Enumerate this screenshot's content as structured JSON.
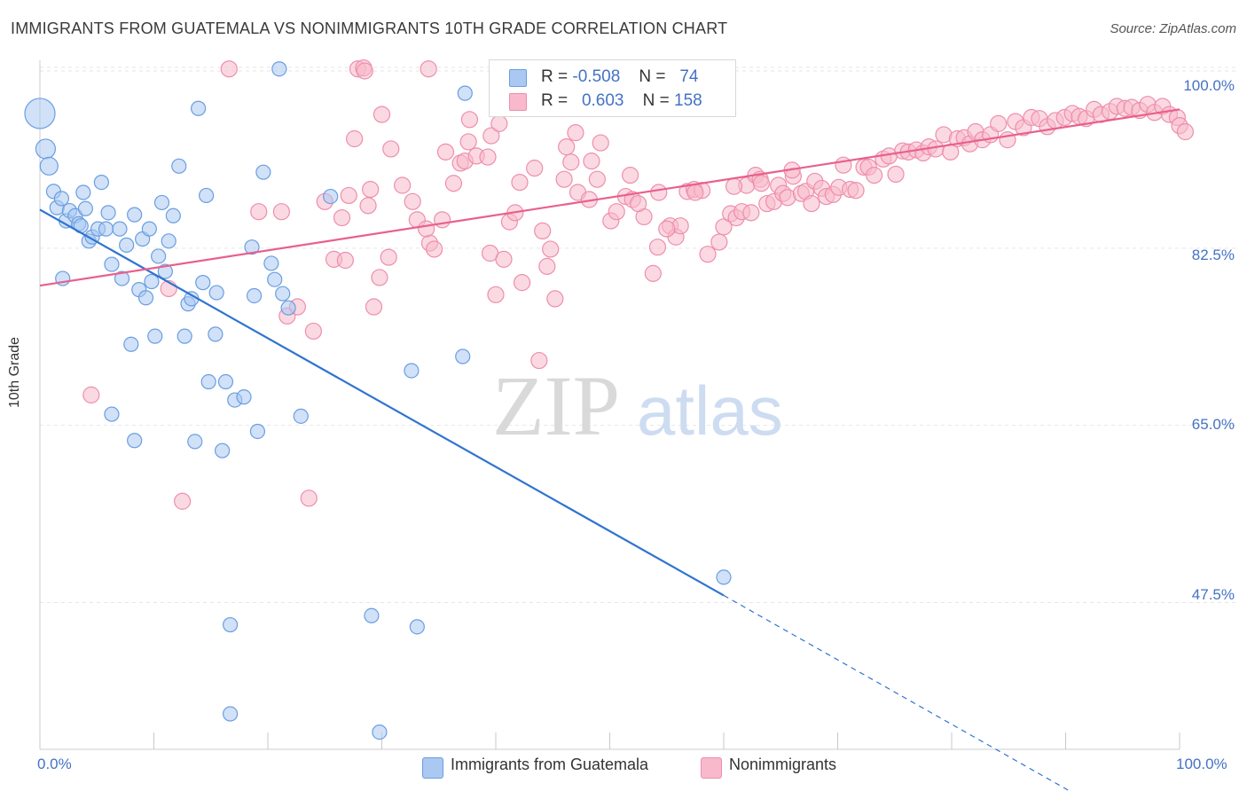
{
  "title": "IMMIGRANTS FROM GUATEMALA VS NONIMMIGRANTS 10TH GRADE CORRELATION CHART",
  "source": "Source: ZipAtlas.com",
  "watermark": {
    "zip": "ZIP",
    "atlas": "atlas"
  },
  "legend": {
    "rows": [
      {
        "r_label": "R =",
        "r_value": "-0.508",
        "n_label": "N =",
        "n_value": "74"
      },
      {
        "r_label": "R =",
        "r_value": "0.603",
        "n_label": "N =",
        "n_value": "158"
      }
    ]
  },
  "colors": {
    "blue_fill": "#aac8f2",
    "blue_stroke": "#6a9ee0",
    "blue_line": "#2f74d0",
    "pink_fill": "#f7b9cb",
    "pink_stroke": "#ee8eac",
    "pink_line": "#e8608c",
    "tick_label": "#4472c4",
    "grid": "#e6e6e6"
  },
  "chart_data": {
    "type": "scatter",
    "title": "IMMIGRANTS FROM GUATEMALA VS NONIMMIGRANTS 10TH GRADE CORRELATION CHART",
    "xlabel": "",
    "ylabel": "10th Grade",
    "xlim": [
      0,
      100
    ],
    "ylim": [
      33,
      100
    ],
    "x_tick_labels": [
      "0.0%",
      "100.0%"
    ],
    "y_ticks": [
      47.5,
      65.0,
      82.5,
      100.0
    ],
    "y_tick_labels": [
      "47.5%",
      "65.0%",
      "82.5%",
      "100.0%"
    ],
    "grid": true,
    "legend_position": "top-center",
    "series": [
      {
        "name": "Immigrants from Guatemala",
        "color": "#aac8f2",
        "trend": {
          "x": [
            0,
            60,
            93
          ],
          "y": [
            86.3,
            48.2,
            27.2
          ],
          "solid_until": 60
        },
        "points": [
          [
            0,
            95.8,
            17
          ],
          [
            0.5,
            92.3,
            11
          ],
          [
            0.8,
            90.6,
            10
          ],
          [
            1.2,
            88.1,
            8
          ],
          [
            1.5,
            86.5,
            8
          ],
          [
            1.9,
            87.4,
            8
          ],
          [
            2.3,
            85.2,
            8
          ],
          [
            2.6,
            86.2,
            8
          ],
          [
            3.1,
            85.7,
            8
          ],
          [
            3.4,
            84.9,
            8
          ],
          [
            3.8,
            88.0,
            8
          ],
          [
            4.0,
            86.4,
            8
          ],
          [
            4.3,
            83.2,
            8
          ],
          [
            4.6,
            83.6,
            8
          ],
          [
            5.1,
            84.4,
            8
          ],
          [
            5.4,
            89.0,
            8
          ],
          [
            5.8,
            84.4,
            8
          ],
          [
            6.0,
            86.0,
            8
          ],
          [
            6.3,
            80.9,
            8
          ],
          [
            7.0,
            84.4,
            8
          ],
          [
            7.2,
            79.5,
            8
          ],
          [
            7.6,
            82.8,
            8
          ],
          [
            8.0,
            73.0,
            8
          ],
          [
            8.3,
            85.8,
            8
          ],
          [
            8.7,
            78.4,
            8
          ],
          [
            9.0,
            83.4,
            8
          ],
          [
            9.3,
            77.6,
            8
          ],
          [
            9.6,
            84.4,
            8
          ],
          [
            9.8,
            79.2,
            8
          ],
          [
            10.1,
            73.8,
            8
          ],
          [
            10.4,
            81.7,
            8
          ],
          [
            10.7,
            87.0,
            8
          ],
          [
            11.0,
            80.2,
            8
          ],
          [
            11.3,
            83.2,
            8
          ],
          [
            11.7,
            85.7,
            8
          ],
          [
            12.2,
            90.6,
            8
          ],
          [
            12.7,
            73.8,
            8
          ],
          [
            13.0,
            77.0,
            8
          ],
          [
            13.3,
            77.5,
            8
          ],
          [
            13.6,
            63.4,
            8
          ],
          [
            13.9,
            96.3,
            8
          ],
          [
            14.3,
            79.1,
            8
          ],
          [
            14.6,
            87.7,
            8
          ],
          [
            14.8,
            69.3,
            8
          ],
          [
            15.4,
            74.0,
            8
          ],
          [
            15.5,
            78.1,
            8
          ],
          [
            16.0,
            62.5,
            8
          ],
          [
            16.3,
            69.3,
            8
          ],
          [
            16.7,
            45.3,
            8
          ],
          [
            17.1,
            67.5,
            8
          ],
          [
            17.9,
            67.8,
            8
          ],
          [
            18.6,
            82.6,
            8
          ],
          [
            18.8,
            77.8,
            8
          ],
          [
            19.1,
            64.4,
            8
          ],
          [
            19.6,
            90.0,
            8
          ],
          [
            20.3,
            81.0,
            8
          ],
          [
            20.6,
            79.4,
            8
          ],
          [
            21.3,
            78.0,
            8
          ],
          [
            21.8,
            76.6,
            8
          ],
          [
            22.9,
            65.9,
            8
          ],
          [
            25.5,
            87.6,
            8
          ],
          [
            29.1,
            46.2,
            8
          ],
          [
            29.8,
            34.7,
            8
          ],
          [
            32.6,
            70.4,
            8
          ],
          [
            33.1,
            45.1,
            8
          ],
          [
            37.1,
            71.8,
            8
          ],
          [
            37.3,
            97.8,
            8
          ],
          [
            60.0,
            50.0,
            8
          ],
          [
            16.7,
            36.5,
            8
          ],
          [
            2.0,
            79.5,
            8
          ],
          [
            3.6,
            84.7,
            8
          ],
          [
            6.3,
            66.1,
            8
          ],
          [
            8.3,
            63.5,
            8
          ],
          [
            21.0,
            100.2,
            8
          ]
        ]
      },
      {
        "name": "Nonimmigrants",
        "color": "#f7b9cb",
        "trend": {
          "x": [
            0,
            100
          ],
          "y": [
            78.8,
            96.2
          ]
        },
        "points": [
          [
            4.5,
            68.0
          ],
          [
            12.5,
            57.5
          ],
          [
            11.3,
            78.5
          ],
          [
            16.6,
            100.2
          ],
          [
            19.2,
            86.1
          ],
          [
            21.2,
            86.1
          ],
          [
            21.7,
            75.8
          ],
          [
            22.6,
            76.7
          ],
          [
            23.6,
            57.8
          ],
          [
            24.0,
            74.3
          ],
          [
            25.0,
            87.1
          ],
          [
            25.8,
            81.4
          ],
          [
            26.5,
            85.5
          ],
          [
            26.8,
            81.3
          ],
          [
            27.1,
            87.7
          ],
          [
            27.6,
            93.3
          ],
          [
            27.9,
            100.2
          ],
          [
            28.4,
            100.3
          ],
          [
            28.5,
            100.0
          ],
          [
            28.8,
            86.7
          ],
          [
            29.0,
            88.3
          ],
          [
            29.3,
            76.7
          ],
          [
            29.8,
            79.6
          ],
          [
            30.0,
            95.7
          ],
          [
            30.6,
            81.6
          ],
          [
            30.8,
            92.3
          ],
          [
            31.8,
            88.7
          ],
          [
            32.7,
            87.1
          ],
          [
            33.1,
            85.3
          ],
          [
            34.1,
            100.2
          ],
          [
            34.2,
            83.0
          ],
          [
            34.6,
            82.4
          ],
          [
            35.3,
            85.3
          ],
          [
            35.6,
            92.0
          ],
          [
            36.3,
            88.9
          ],
          [
            36.9,
            90.9
          ],
          [
            37.3,
            91.1
          ],
          [
            37.6,
            93.0
          ],
          [
            37.7,
            95.2
          ],
          [
            38.3,
            91.6
          ],
          [
            39.3,
            91.5
          ],
          [
            39.5,
            82.0
          ],
          [
            39.6,
            93.6
          ],
          [
            40.0,
            77.9
          ],
          [
            40.3,
            94.8
          ],
          [
            40.7,
            81.4
          ],
          [
            41.2,
            85.1
          ],
          [
            41.7,
            86.0
          ],
          [
            42.1,
            89.0
          ],
          [
            42.3,
            79.1
          ],
          [
            43.4,
            90.4
          ],
          [
            43.8,
            71.4
          ],
          [
            44.1,
            84.2
          ],
          [
            44.5,
            80.7
          ],
          [
            45.2,
            77.5
          ],
          [
            46.0,
            89.3
          ],
          [
            46.2,
            92.5
          ],
          [
            46.6,
            91.0
          ],
          [
            47.2,
            88.0
          ],
          [
            48.2,
            87.3
          ],
          [
            48.4,
            91.1
          ],
          [
            48.9,
            89.3
          ],
          [
            49.2,
            92.9
          ],
          [
            50.1,
            85.2
          ],
          [
            50.6,
            86.1
          ],
          [
            51.4,
            87.6
          ],
          [
            51.8,
            89.7
          ],
          [
            52.0,
            87.3
          ],
          [
            53.0,
            85.6
          ],
          [
            53.8,
            80.0
          ],
          [
            54.2,
            82.6
          ],
          [
            55.3,
            84.7
          ],
          [
            55.8,
            83.6
          ],
          [
            56.2,
            84.7
          ],
          [
            56.8,
            88.1
          ],
          [
            57.4,
            88.3
          ],
          [
            58.1,
            88.2
          ],
          [
            58.6,
            81.9
          ],
          [
            59.6,
            83.1
          ],
          [
            60.0,
            84.6
          ],
          [
            60.6,
            85.9
          ],
          [
            61.1,
            85.5
          ],
          [
            61.6,
            86.1
          ],
          [
            62.0,
            88.7
          ],
          [
            62.4,
            86.0
          ],
          [
            62.8,
            89.7
          ],
          [
            63.2,
            89.3
          ],
          [
            63.8,
            86.9
          ],
          [
            64.4,
            87.1
          ],
          [
            64.8,
            88.7
          ],
          [
            65.2,
            87.9
          ],
          [
            65.6,
            87.5
          ],
          [
            66.1,
            89.6
          ],
          [
            66.8,
            87.9
          ],
          [
            67.2,
            88.1
          ],
          [
            67.7,
            86.9
          ],
          [
            68.0,
            89.1
          ],
          [
            68.6,
            88.4
          ],
          [
            69.0,
            87.6
          ],
          [
            69.6,
            87.8
          ],
          [
            70.1,
            88.5
          ],
          [
            70.5,
            90.7
          ],
          [
            71.1,
            88.3
          ],
          [
            71.6,
            88.2
          ],
          [
            72.3,
            90.5
          ],
          [
            72.7,
            90.5
          ],
          [
            73.2,
            89.7
          ],
          [
            74.0,
            91.3
          ],
          [
            74.5,
            91.6
          ],
          [
            75.1,
            89.8
          ],
          [
            75.7,
            92.1
          ],
          [
            76.2,
            92.0
          ],
          [
            76.9,
            92.2
          ],
          [
            77.5,
            91.9
          ],
          [
            78.0,
            92.5
          ],
          [
            78.6,
            92.3
          ],
          [
            79.3,
            93.7
          ],
          [
            79.9,
            92.0
          ],
          [
            80.5,
            93.3
          ],
          [
            81.1,
            93.4
          ],
          [
            81.6,
            92.8
          ],
          [
            82.1,
            94.0
          ],
          [
            82.7,
            93.2
          ],
          [
            83.4,
            93.7
          ],
          [
            84.1,
            94.8
          ],
          [
            84.9,
            93.2
          ],
          [
            85.6,
            95.0
          ],
          [
            86.3,
            94.4
          ],
          [
            87.0,
            95.4
          ],
          [
            87.7,
            95.3
          ],
          [
            88.4,
            94.5
          ],
          [
            89.1,
            95.1
          ],
          [
            89.9,
            95.4
          ],
          [
            90.6,
            95.8
          ],
          [
            91.2,
            95.5
          ],
          [
            91.8,
            95.3
          ],
          [
            92.5,
            96.2
          ],
          [
            93.1,
            95.7
          ],
          [
            93.9,
            96.0
          ],
          [
            94.5,
            96.5
          ],
          [
            95.2,
            96.3
          ],
          [
            95.8,
            96.4
          ],
          [
            96.5,
            96.1
          ],
          [
            97.2,
            96.7
          ],
          [
            97.8,
            95.9
          ],
          [
            98.5,
            96.5
          ],
          [
            99.1,
            95.7
          ],
          [
            99.8,
            95.4
          ],
          [
            100.0,
            94.6
          ],
          [
            100.5,
            94.0
          ],
          [
            57.5,
            88.0
          ],
          [
            63.3,
            88.9
          ],
          [
            55.0,
            84.4
          ],
          [
            33.9,
            84.4
          ],
          [
            52.5,
            86.9
          ],
          [
            44.8,
            82.4
          ],
          [
            47.0,
            93.9
          ],
          [
            54.3,
            88.0
          ],
          [
            60.9,
            88.6
          ],
          [
            66.0,
            90.2
          ]
        ]
      }
    ]
  },
  "bottom_legend": [
    "Immigrants from Guatemala",
    "Nonimmigrants"
  ]
}
